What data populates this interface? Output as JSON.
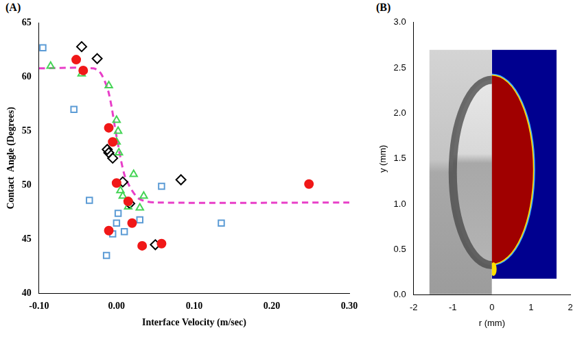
{
  "chart_data": [
    {
      "type": "scatter",
      "title": "(A)",
      "x_label": "Interface Velocity (m/sec)",
      "y_label": "Contact  Angle (Degrees)",
      "xlim": [
        -0.1,
        0.3
      ],
      "xticks": [
        {
          "value": -0.1,
          "label": "-0.10"
        },
        {
          "value": 0,
          "label": "0.00"
        },
        {
          "value": 0.1,
          "label": "0.10"
        },
        {
          "value": 0.2,
          "label": "0.20"
        },
        {
          "value": 0.3,
          "label": "0.30"
        }
      ],
      "ylim": [
        40,
        65
      ],
      "yticks": [
        40,
        45,
        50,
        55,
        60,
        65
      ],
      "grid": false,
      "series": [
        {
          "color": "#f01818",
          "marker": "circle",
          "x": [
            -0.052,
            -0.043,
            -0.01,
            -0.005,
            0.0,
            -0.01,
            0.015,
            0.02,
            0.033,
            0.058,
            0.248
          ],
          "values": [
            61.6,
            60.6,
            55.3,
            54.0,
            50.2,
            45.8,
            48.5,
            46.5,
            44.4,
            44.6,
            50.1
          ]
        },
        {
          "color": "#44d455",
          "marker": "open_triangle",
          "x": [
            -0.085,
            -0.045,
            -0.01,
            0.0,
            0.002,
            0.0,
            0.003,
            0.022,
            0.005,
            0.008,
            0.035,
            0.03,
            0.015
          ],
          "values": [
            61.0,
            60.3,
            59.2,
            56.0,
            55.0,
            54.0,
            53.0,
            51.0,
            49.5,
            49.0,
            49.0,
            47.9,
            48.0
          ]
        },
        {
          "color": "#000000",
          "marker": "open_diamond",
          "x": [
            -0.045,
            -0.025,
            -0.012,
            -0.01,
            -0.005,
            0.008,
            0.017,
            0.05,
            0.083
          ],
          "values": [
            62.8,
            61.7,
            53.3,
            53.0,
            52.5,
            50.3,
            48.3,
            44.5,
            50.5
          ]
        },
        {
          "color": "#5b9bd5",
          "marker": "open_square",
          "x": [
            -0.095,
            -0.055,
            -0.035,
            -0.013,
            -0.005,
            0.0,
            0.002,
            0.01,
            0.03,
            0.058,
            0.135
          ],
          "values": [
            62.7,
            57.0,
            48.6,
            43.5,
            45.5,
            46.5,
            47.4,
            45.7,
            46.8,
            49.9,
            46.5
          ]
        },
        {
          "color": "#e83ec8",
          "type": "line",
          "line_style": "dashed",
          "x": [
            -0.1,
            -0.03,
            -0.02,
            -0.01,
            0.0,
            0.01,
            0.02,
            0.03,
            0.05,
            0.3
          ],
          "values": [
            60.8,
            60.8,
            60.3,
            58.5,
            54.5,
            51.0,
            49.5,
            48.7,
            48.4,
            48.4
          ]
        }
      ]
    },
    {
      "type": "image",
      "title": "(B)",
      "x_label": "r (mm)",
      "y_label": "y (mm)",
      "xlim": [
        -2,
        2
      ],
      "xticks": [
        -2,
        -1,
        0,
        1,
        2
      ],
      "ylim": [
        0,
        3
      ],
      "yticks": [
        {
          "value": 0,
          "label": "0.0"
        },
        {
          "value": 0.5,
          "label": "0.5"
        },
        {
          "value": 1,
          "label": "1.0"
        },
        {
          "value": 1.5,
          "label": "1.5"
        },
        {
          "value": 2,
          "label": "2.0"
        },
        {
          "value": 2.5,
          "label": "2.5"
        },
        {
          "value": 3,
          "label": "3.0"
        }
      ],
      "grid": false
    }
  ]
}
